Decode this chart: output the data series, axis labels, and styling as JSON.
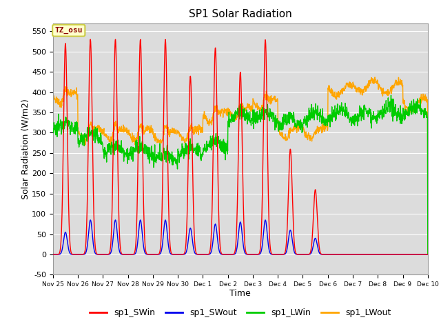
{
  "title": "SP1 Solar Radiation",
  "xlabel": "Time",
  "ylabel": "Solar Radiation (W/m2)",
  "ylim": [
    -50,
    570
  ],
  "yticks": [
    -50,
    0,
    50,
    100,
    150,
    200,
    250,
    300,
    350,
    400,
    450,
    500,
    550
  ],
  "colors": {
    "SWin": "#FF0000",
    "SWout": "#0000EE",
    "LWin": "#00CC00",
    "LWout": "#FFA500"
  },
  "legend_labels": [
    "sp1_SWin",
    "sp1_SWout",
    "sp1_LWin",
    "sp1_LWout"
  ],
  "tz_label": "TZ_osu",
  "background_color": "#DCDCDC",
  "n_days": 15,
  "dt_hours": 0.25,
  "peak_values_SWin": [
    520,
    530,
    530,
    530,
    530,
    440,
    510,
    450,
    530,
    260,
    160,
    0,
    0,
    0,
    0
  ],
  "peak_values_SWout": [
    55,
    85,
    85,
    85,
    85,
    65,
    75,
    80,
    85,
    60,
    40,
    0,
    0,
    0,
    0
  ],
  "LWin_base": [
    315,
    290,
    260,
    255,
    240,
    255,
    270,
    340,
    340,
    325,
    340,
    345,
    345,
    350,
    355
  ],
  "LWout_base": [
    385,
    295,
    295,
    295,
    290,
    295,
    340,
    350,
    370,
    300,
    300,
    405,
    415,
    410,
    370
  ]
}
